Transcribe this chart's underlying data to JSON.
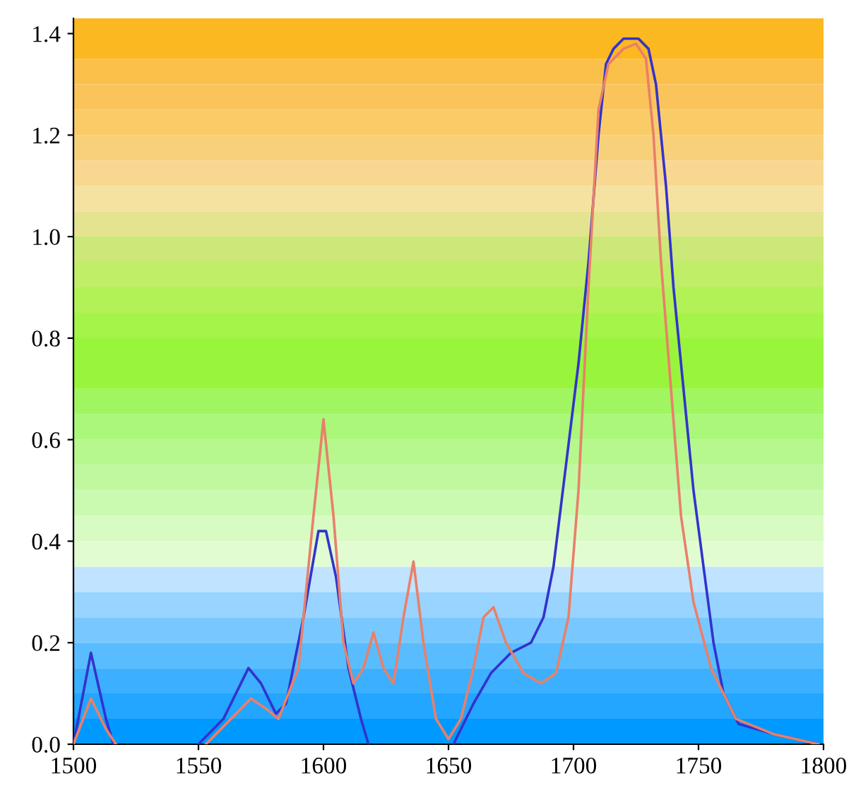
{
  "chart_data": {
    "type": "line",
    "xlim": [
      1500,
      1800
    ],
    "ylim": [
      0,
      1.43
    ],
    "xticks": [
      1500,
      1550,
      1600,
      1650,
      1700,
      1750,
      1800
    ],
    "yticks": [
      {
        "value": 0,
        "label": "0.0"
      },
      {
        "value": 0.2,
        "label": "0.2"
      },
      {
        "value": 0.4,
        "label": "0.4"
      },
      {
        "value": 0.6,
        "label": "0.6"
      },
      {
        "value": 0.8,
        "label": "0.8"
      },
      {
        "value": 1.0,
        "label": "1.0"
      },
      {
        "value": 1.2,
        "label": "1.2"
      },
      {
        "value": 1.4,
        "label": "1.4"
      }
    ],
    "grid": false,
    "legend": false,
    "marker": "none",
    "line_style": "solid",
    "bands": [
      {
        "axis": "y",
        "from": 0.0,
        "to": 0.05,
        "color": "#0099ff"
      },
      {
        "axis": "y",
        "from": 0.05,
        "to": 0.1,
        "color": "#22a6ff"
      },
      {
        "axis": "y",
        "from": 0.1,
        "to": 0.15,
        "color": "#3cb0ff"
      },
      {
        "axis": "y",
        "from": 0.15,
        "to": 0.2,
        "color": "#58bcff"
      },
      {
        "axis": "y",
        "from": 0.2,
        "to": 0.25,
        "color": "#78c8ff"
      },
      {
        "axis": "y",
        "from": 0.25,
        "to": 0.3,
        "color": "#98d4ff"
      },
      {
        "axis": "y",
        "from": 0.3,
        "to": 0.35,
        "color": "#c0e4ff"
      },
      {
        "axis": "y",
        "from": 0.35,
        "to": 0.4,
        "color": "#e2fcd2"
      },
      {
        "axis": "y",
        "from": 0.4,
        "to": 0.45,
        "color": "#d8fbc4"
      },
      {
        "axis": "y",
        "from": 0.45,
        "to": 0.5,
        "color": "#cafab0"
      },
      {
        "axis": "y",
        "from": 0.5,
        "to": 0.55,
        "color": "#c0f8a0"
      },
      {
        "axis": "y",
        "from": 0.55,
        "to": 0.6,
        "color": "#b6f88e"
      },
      {
        "axis": "y",
        "from": 0.6,
        "to": 0.65,
        "color": "#aaf77a"
      },
      {
        "axis": "y",
        "from": 0.65,
        "to": 0.7,
        "color": "#a0f660"
      },
      {
        "axis": "y",
        "from": 0.7,
        "to": 0.8,
        "color": "#99f53c"
      },
      {
        "axis": "y",
        "from": 0.8,
        "to": 0.85,
        "color": "#a4f44a"
      },
      {
        "axis": "y",
        "from": 0.85,
        "to": 0.9,
        "color": "#b2f256"
      },
      {
        "axis": "y",
        "from": 0.9,
        "to": 0.95,
        "color": "#c0ee66"
      },
      {
        "axis": "y",
        "from": 0.95,
        "to": 1.0,
        "color": "#cce878"
      },
      {
        "axis": "y",
        "from": 1.0,
        "to": 1.05,
        "color": "#e4e490"
      },
      {
        "axis": "y",
        "from": 1.05,
        "to": 1.1,
        "color": "#f6e2a0"
      },
      {
        "axis": "y",
        "from": 1.1,
        "to": 1.15,
        "color": "#f8d890"
      },
      {
        "axis": "y",
        "from": 1.15,
        "to": 1.2,
        "color": "#f8d07a"
      },
      {
        "axis": "y",
        "from": 1.2,
        "to": 1.25,
        "color": "#f9cc68"
      },
      {
        "axis": "y",
        "from": 1.25,
        "to": 1.3,
        "color": "#fac45a"
      },
      {
        "axis": "y",
        "from": 1.3,
        "to": 1.35,
        "color": "#fbc04a"
      },
      {
        "axis": "y",
        "from": 1.35,
        "to": 1.43,
        "color": "#fcb820"
      }
    ],
    "series": [
      {
        "color": "#3333cc",
        "x": [
          1500,
          1507,
          1513,
          1516,
          1533,
          1550,
          1560,
          1570,
          1575,
          1581,
          1585,
          1592,
          1598,
          1601,
          1605,
          1610,
          1615,
          1618,
          1635,
          1652,
          1660,
          1667,
          1675,
          1683,
          1688,
          1692,
          1697,
          1702,
          1706,
          1710,
          1713,
          1716,
          1720,
          1726,
          1730,
          1733,
          1737,
          1740,
          1744,
          1748,
          1752,
          1756,
          1760,
          1766,
          1780,
          1798
        ],
        "values": [
          0.0,
          0.18,
          0.05,
          0.0,
          null,
          0.0,
          0.05,
          0.15,
          0.12,
          0.06,
          0.08,
          0.25,
          0.42,
          0.42,
          0.33,
          0.15,
          0.05,
          0.0,
          null,
          0.0,
          0.08,
          0.14,
          0.18,
          0.2,
          0.25,
          0.35,
          0.55,
          0.75,
          0.95,
          1.2,
          1.34,
          1.37,
          1.39,
          1.39,
          1.37,
          1.3,
          1.1,
          0.9,
          0.7,
          0.5,
          0.35,
          0.2,
          0.1,
          0.04,
          0.02,
          0.0
        ]
      },
      {
        "color": "#e8806a",
        "x": [
          1500,
          1507,
          1513,
          1517,
          1535,
          1553,
          1563,
          1571,
          1577,
          1582,
          1590,
          1596,
          1600,
          1604,
          1608,
          1612,
          1616,
          1620,
          1624,
          1628,
          1632,
          1636,
          1640,
          1645,
          1650,
          1655,
          1660,
          1664,
          1668,
          1673,
          1680,
          1687,
          1693,
          1698,
          1702,
          1706,
          1710,
          1714,
          1720,
          1725,
          1729,
          1732,
          1735,
          1739,
          1743,
          1748,
          1755,
          1765,
          1780,
          1798
        ],
        "values": [
          0.0,
          0.09,
          0.03,
          0.0,
          null,
          0.0,
          0.05,
          0.09,
          0.07,
          0.05,
          0.15,
          0.45,
          0.64,
          0.45,
          0.2,
          0.12,
          0.15,
          0.22,
          0.15,
          0.12,
          0.25,
          0.36,
          0.2,
          0.05,
          0.01,
          0.05,
          0.15,
          0.25,
          0.27,
          0.2,
          0.14,
          0.12,
          0.14,
          0.25,
          0.5,
          0.9,
          1.25,
          1.34,
          1.37,
          1.38,
          1.35,
          1.2,
          0.95,
          0.7,
          0.45,
          0.28,
          0.15,
          0.05,
          0.02,
          0.0
        ]
      }
    ]
  }
}
